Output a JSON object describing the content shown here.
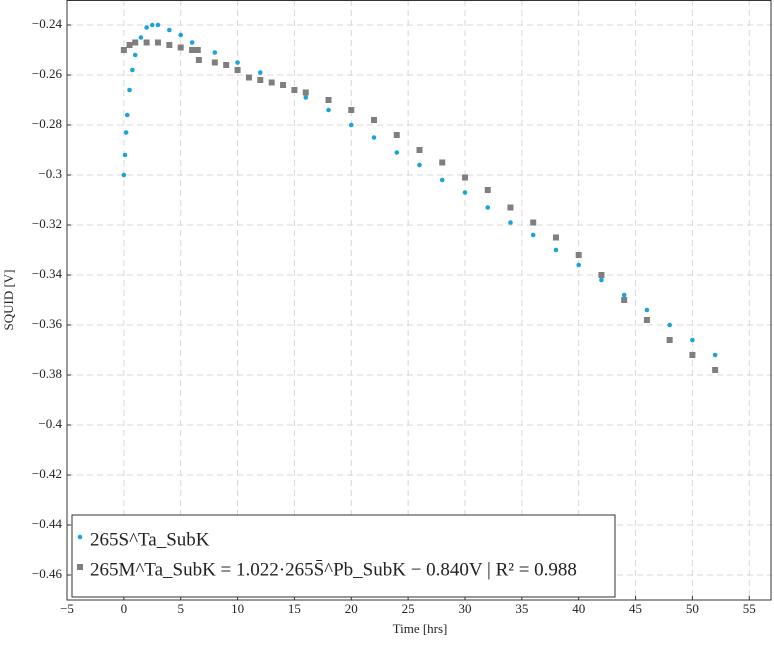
{
  "chart_data": {
    "type": "scatter",
    "xlabel": "Time [hrs]",
    "ylabel": "SQUID [V]",
    "xlim": [
      -5,
      57
    ],
    "ylim": [
      -0.47,
      -0.23
    ],
    "xticks": [
      {
        "value": -5,
        "label": "−5"
      },
      0,
      5,
      10,
      15,
      20,
      25,
      30,
      35,
      40,
      45,
      50,
      55
    ],
    "yticks": [
      {
        "value": -0.24,
        "label": "−0.24"
      },
      {
        "value": -0.26,
        "label": "−0.26"
      },
      {
        "value": -0.28,
        "label": "−0.28"
      },
      {
        "value": -0.3,
        "label": "−0.3"
      },
      {
        "value": -0.32,
        "label": "−0.32"
      },
      {
        "value": -0.34,
        "label": "−0.34"
      },
      {
        "value": -0.36,
        "label": "−0.36"
      },
      {
        "value": -0.38,
        "label": "−0.38"
      },
      {
        "value": -0.4,
        "label": "−0.4"
      },
      {
        "value": -0.42,
        "label": "−0.42"
      },
      {
        "value": -0.44,
        "label": "−0.44"
      },
      {
        "value": -0.46,
        "label": "−0.46"
      }
    ],
    "grid": true,
    "legend": "lower left",
    "series": [
      {
        "name": "265S^Ta_SubK",
        "color": "#1aa3dc",
        "marker": "circle",
        "x": [
          0,
          0.1,
          0.2,
          0.3,
          0.5,
          0.75,
          1,
          1.5,
          2,
          2.5,
          3,
          4,
          5,
          6,
          8,
          10,
          12,
          14,
          16,
          18,
          20,
          22,
          24,
          26,
          28,
          30,
          32,
          34,
          36,
          38,
          40,
          42,
          44,
          46,
          48,
          50,
          52
        ],
        "values": [
          -0.3,
          -0.292,
          -0.283,
          -0.276,
          -0.266,
          -0.258,
          -0.252,
          -0.245,
          -0.241,
          -0.24,
          -0.24,
          -0.242,
          -0.244,
          -0.247,
          -0.251,
          -0.255,
          -0.259,
          -0.264,
          -0.269,
          -0.274,
          -0.28,
          -0.285,
          -0.291,
          -0.296,
          -0.302,
          -0.307,
          -0.313,
          -0.319,
          -0.324,
          -0.33,
          -0.336,
          -0.342,
          -0.348,
          -0.354,
          -0.36,
          -0.366,
          -0.372
        ]
      },
      {
        "name": "265M^Ta_SubK = 1.022·265S̄^Pb_SubK − 0.840V | R² = 0.988",
        "color": "#7f7f7f",
        "marker": "square",
        "x": [
          0,
          0.5,
          1,
          2,
          3,
          4,
          5,
          6,
          6.5,
          6.6,
          8,
          9,
          10,
          11,
          12,
          13,
          14,
          15,
          16,
          18,
          20,
          22,
          24,
          26,
          28,
          30,
          32,
          34,
          36,
          38,
          40,
          42,
          44,
          46,
          48,
          50,
          52
        ],
        "values": [
          -0.25,
          -0.248,
          -0.247,
          -0.247,
          -0.247,
          -0.248,
          -0.249,
          -0.25,
          -0.25,
          -0.254,
          -0.255,
          -0.256,
          -0.258,
          -0.261,
          -0.262,
          -0.263,
          -0.264,
          -0.266,
          -0.267,
          -0.27,
          -0.274,
          -0.278,
          -0.284,
          -0.29,
          -0.295,
          -0.301,
          -0.306,
          -0.313,
          -0.319,
          -0.325,
          -0.332,
          -0.34,
          -0.35,
          -0.358,
          -0.366,
          -0.372,
          -0.378
        ]
      }
    ]
  }
}
